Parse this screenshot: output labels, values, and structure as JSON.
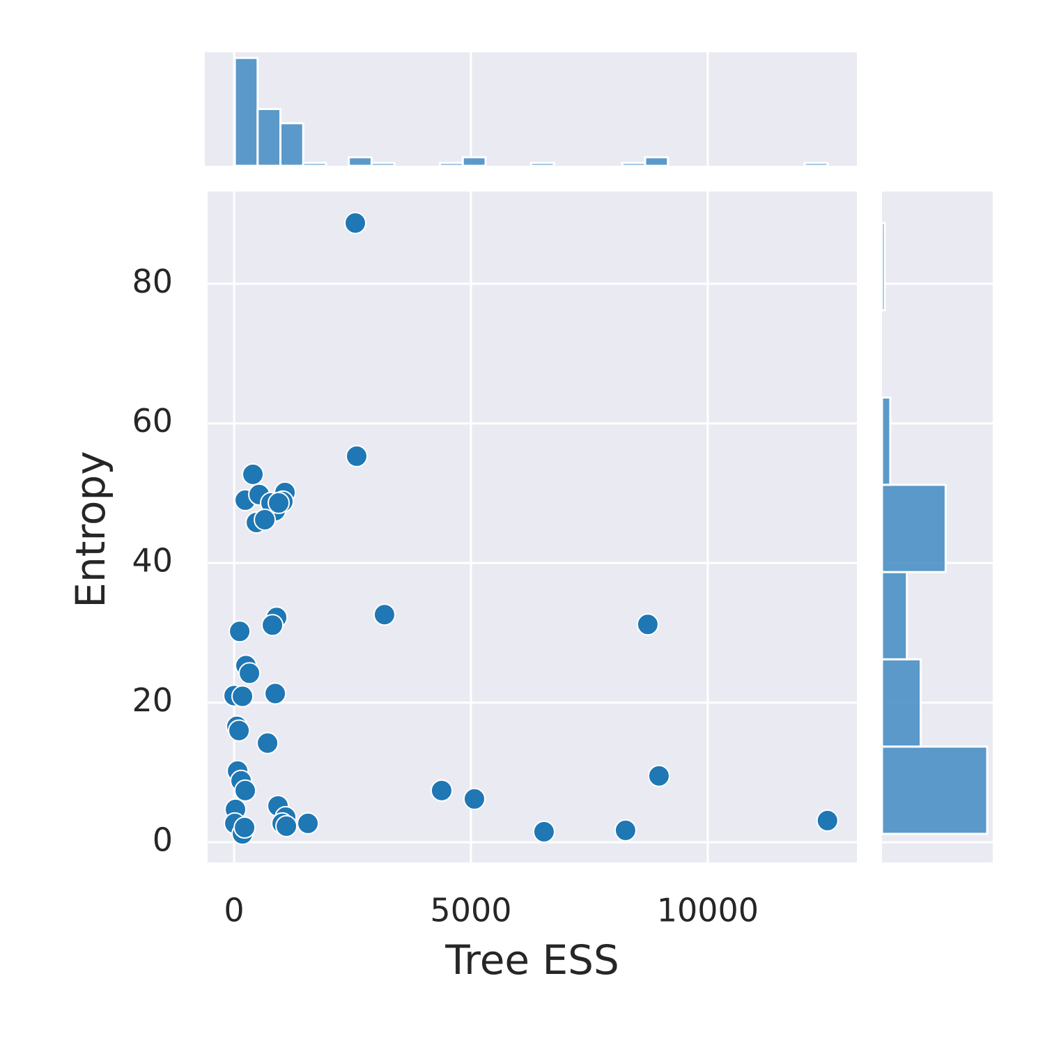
{
  "chart_data": [
    {
      "type": "scatter",
      "xlabel": "Tree ESS",
      "ylabel": "Entropy",
      "color": "#1f77b4",
      "grid": true,
      "xlim": [
        -560,
        13150
      ],
      "ylim": [
        -2.9,
        93.2
      ],
      "xticks": [
        0,
        5000,
        10000
      ],
      "yticks": [
        0,
        20,
        40,
        60,
        80
      ],
      "x": [
        2559,
        2588,
        397,
        235,
        529,
        1074,
        1029,
        868,
        779,
        941,
        471,
        647,
        3176,
        897,
        809,
        8735,
        118,
        250,
        324,
        0,
        176,
        868,
        59,
        103,
        706,
        8971,
        74,
        147,
        235,
        4382,
        5074,
        29,
        926,
        1088,
        1015,
        1103,
        1559,
        15,
        176,
        221,
        6544,
        8265,
        12529
      ],
      "y": [
        88.7,
        55.3,
        52.7,
        49.0,
        49.8,
        50.1,
        48.8,
        47.5,
        48.6,
        48.6,
        45.8,
        46.2,
        32.6,
        32.2,
        31.1,
        31.2,
        30.2,
        25.3,
        24.2,
        21.0,
        20.9,
        21.3,
        16.6,
        16.0,
        14.2,
        9.5,
        10.2,
        8.8,
        7.4,
        7.4,
        6.2,
        4.7,
        5.2,
        3.6,
        2.7,
        2.3,
        2.7,
        2.7,
        1.2,
        2.1,
        1.5,
        1.7,
        3.1
      ]
    },
    {
      "type": "histogram",
      "orientation": "vertical",
      "color": "#4a90c4",
      "bins": [
        15,
        496.3,
        977.6,
        1458.9,
        1940.2,
        2421.5,
        2902.8,
        3384.1,
        3865.4,
        4346.7,
        4828,
        5309.3,
        5790.6,
        6271.9,
        6753.2,
        7234.5,
        7715.8,
        8197.1,
        8678.4,
        9159.7,
        9641,
        10122.3,
        10603.6,
        11084.9,
        11566.2,
        12047.5,
        12529
      ],
      "values": [
        38,
        20,
        15,
        1,
        0,
        3,
        1,
        0,
        0,
        1,
        3,
        0,
        0,
        1,
        0,
        0,
        0,
        1,
        3,
        0,
        0,
        0,
        0,
        0,
        0,
        1
      ]
    },
    {
      "type": "histogram",
      "orientation": "horizontal",
      "color": "#4a90c4",
      "bins": [
        1.2,
        13.7,
        26.2,
        38.7,
        51.2,
        63.7,
        76.2,
        88.7
      ],
      "values": [
        38,
        14,
        9,
        23,
        3,
        0,
        1
      ]
    }
  ]
}
